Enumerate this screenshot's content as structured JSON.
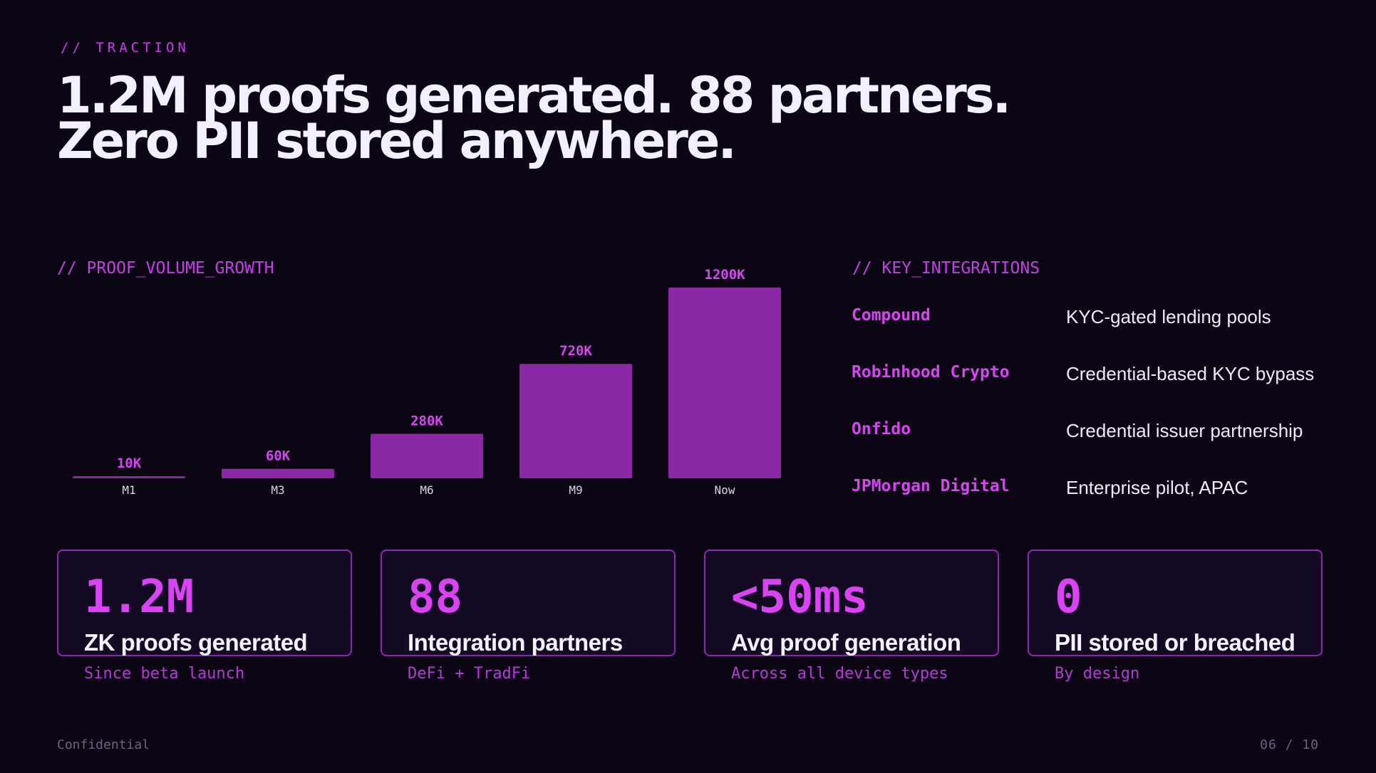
{
  "eyebrow": "// TRACTION",
  "headline": {
    "line1": "1.2M proofs generated. 88 partners.",
    "line2": "Zero PII stored anywhere."
  },
  "chart_section_label": "// PROOF_VOLUME_GROWTH",
  "integrations_label": "// KEY_INTEGRATIONS",
  "colors": {
    "accent": "#d944f2",
    "bar": "#8a28a6",
    "background": "#0c0614",
    "card_border": "#8a2ab0"
  },
  "chart_data": {
    "type": "bar",
    "categories": [
      "M1",
      "M3",
      "M6",
      "M9",
      "Now"
    ],
    "values": [
      10,
      60,
      280,
      720,
      1200
    ],
    "value_labels": [
      "10K",
      "60K",
      "280K",
      "720K",
      "1200K"
    ],
    "unit": "K",
    "ylim": [
      0,
      1200
    ],
    "grid": false,
    "legend": "none"
  },
  "integrations": [
    {
      "name": "Compound",
      "description": "KYC-gated lending pools"
    },
    {
      "name": "Robinhood Crypto",
      "description": "Credential-based KYC bypass"
    },
    {
      "name": "Onfido",
      "description": "Credential issuer partnership"
    },
    {
      "name": "JPMorgan Digital",
      "description": "Enterprise pilot, APAC"
    }
  ],
  "stats": [
    {
      "value": "1.2M",
      "label": "ZK proofs generated",
      "sub": "Since beta launch"
    },
    {
      "value": "88",
      "label": "Integration partners",
      "sub": "DeFi + TradFi"
    },
    {
      "value": "<50ms",
      "label": "Avg proof generation",
      "sub": "Across all device types"
    },
    {
      "value": "0",
      "label": "PII stored or breached",
      "sub": "By design"
    }
  ],
  "footer": {
    "left": "Confidential",
    "page": "06 / 10"
  }
}
